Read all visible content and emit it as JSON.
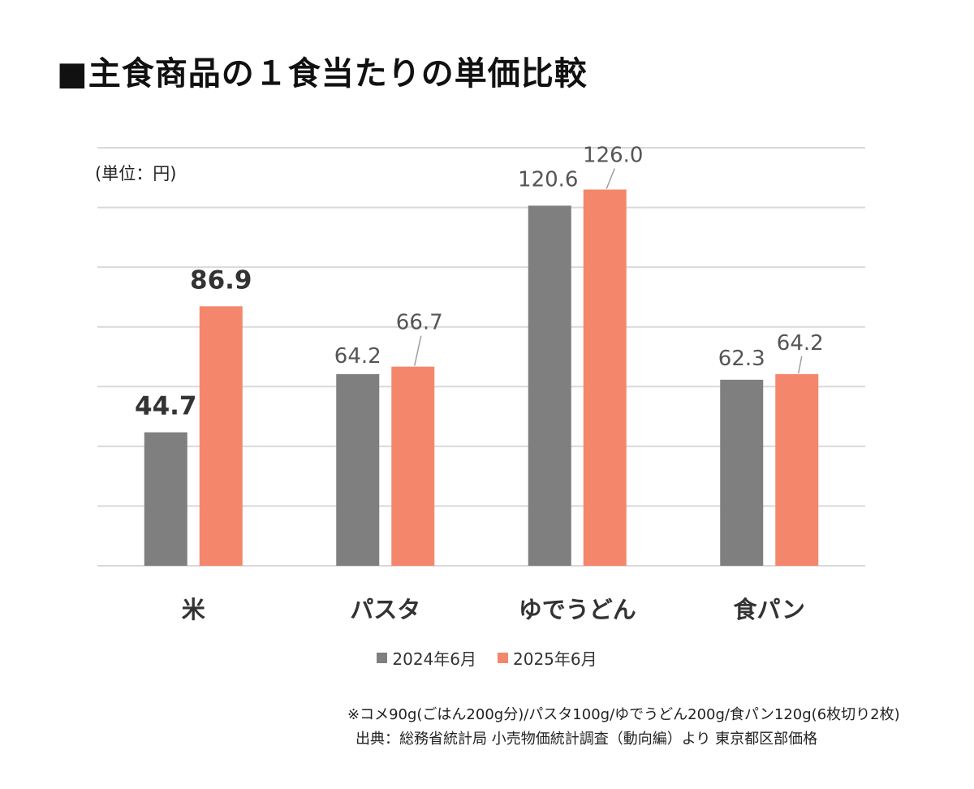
{
  "title": "■主食商品の１食当たりの単価比較",
  "unit_label": "(単位：円)",
  "note": "※コメ90g(ごはん200g分)/パスタ100g/ゆでうどん200g/食パン120g(6枚切り2枚)",
  "source": "出典：総務省統計局 小売物価統計調査（動向編）より 東京都区部価格",
  "colors": {
    "series_2024": "#7f7f7f",
    "series_2025": "#f4876b",
    "grid": "#d9d9d9"
  },
  "chart_data": {
    "type": "bar",
    "categories": [
      "米",
      "パスタ",
      "ゆでうどん",
      "食パン"
    ],
    "series": [
      {
        "name": "2024年6月",
        "values": [
          44.7,
          64.2,
          120.6,
          62.3
        ],
        "labels": [
          "44.7",
          "64.2",
          "120.6",
          "62.3"
        ]
      },
      {
        "name": "2025年6月",
        "values": [
          86.9,
          66.7,
          126.0,
          64.2
        ],
        "labels": [
          "86.9",
          "66.7",
          "126.0",
          "64.2"
        ]
      }
    ],
    "ylim": [
      0,
      140
    ],
    "grid": true,
    "legend": "bottom"
  }
}
